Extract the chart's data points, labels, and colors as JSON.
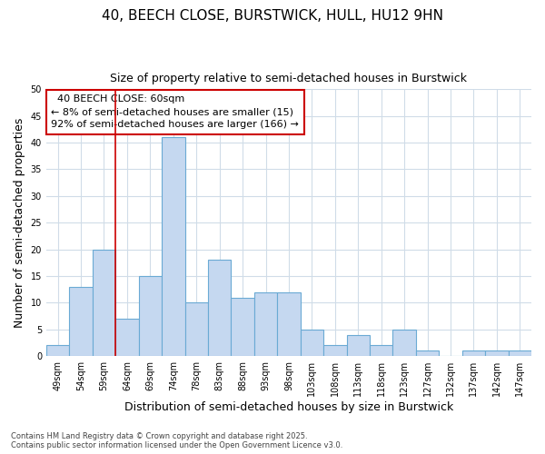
{
  "title": "40, BEECH CLOSE, BURSTWICK, HULL, HU12 9HN",
  "subtitle": "Size of property relative to semi-detached houses in Burstwick",
  "xlabel": "Distribution of semi-detached houses by size in Burstwick",
  "ylabel": "Number of semi-detached properties",
  "bins": [
    "49sqm",
    "54sqm",
    "59sqm",
    "64sqm",
    "69sqm",
    "74sqm",
    "78sqm",
    "83sqm",
    "88sqm",
    "93sqm",
    "98sqm",
    "103sqm",
    "108sqm",
    "113sqm",
    "118sqm",
    "123sqm",
    "127sqm",
    "132sqm",
    "137sqm",
    "142sqm",
    "147sqm"
  ],
  "values": [
    2,
    13,
    20,
    7,
    15,
    41,
    10,
    18,
    11,
    12,
    12,
    5,
    2,
    4,
    2,
    5,
    1,
    0,
    1,
    1,
    1
  ],
  "bar_color": "#c5d8f0",
  "bar_edge_color": "#6aaad4",
  "vline_color": "#cc0000",
  "vline_x_index": 2,
  "property_label": "40 BEECH CLOSE: 60sqm",
  "pct_smaller": 8,
  "count_smaller": 15,
  "pct_larger": 92,
  "count_larger": 166,
  "annotation_box_color": "#cc0000",
  "ylim": [
    0,
    50
  ],
  "yticks": [
    0,
    5,
    10,
    15,
    20,
    25,
    30,
    35,
    40,
    45,
    50
  ],
  "bg_color": "#ffffff",
  "grid_color": "#d0dce8",
  "footer": "Contains HM Land Registry data © Crown copyright and database right 2025.\nContains public sector information licensed under the Open Government Licence v3.0.",
  "title_fontsize": 11,
  "subtitle_fontsize": 9,
  "axis_label_fontsize": 9,
  "tick_fontsize": 7,
  "annotation_fontsize": 8
}
